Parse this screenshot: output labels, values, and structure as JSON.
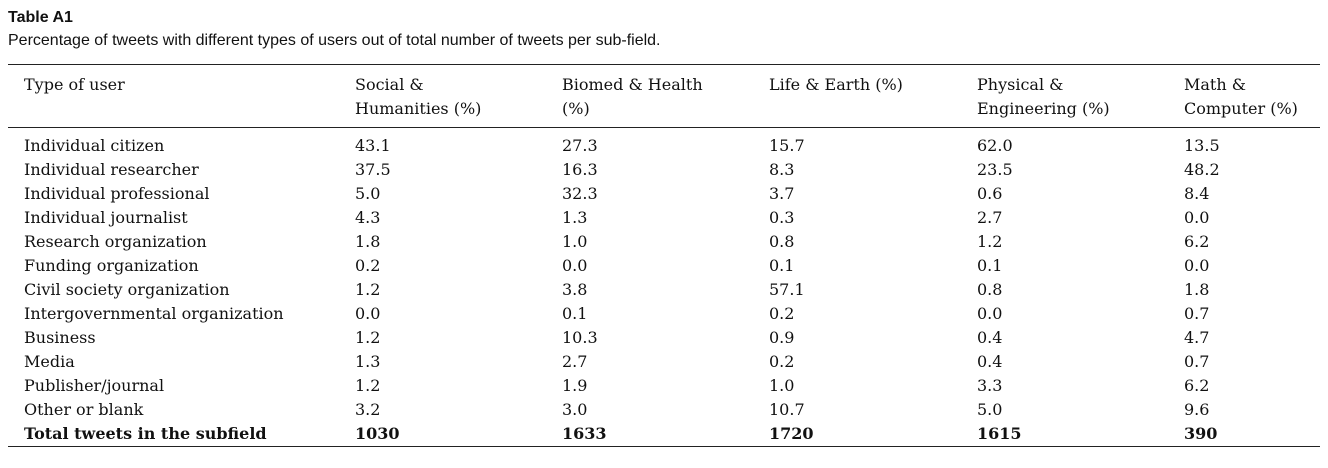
{
  "table": {
    "label": "Table A1",
    "caption": "Percentage of tweets with different types of users out of total number of tweets per sub-field.",
    "headers": [
      [
        "Type of user"
      ],
      [
        "Social &",
        "Humanities (%)"
      ],
      [
        "Biomed & Health",
        "(%)"
      ],
      [
        "Life & Earth (%)"
      ],
      [
        "Physical &",
        "Engineering (%)"
      ],
      [
        "Math &",
        "Computer (%)"
      ]
    ],
    "rows": [
      [
        "Individual citizen",
        "43.1",
        "27.3",
        "15.7",
        "62.0",
        "13.5"
      ],
      [
        "Individual researcher",
        "37.5",
        "16.3",
        "8.3",
        "23.5",
        "48.2"
      ],
      [
        "Individual professional",
        "5.0",
        "32.3",
        "3.7",
        "0.6",
        "8.4"
      ],
      [
        "Individual journalist",
        "4.3",
        "1.3",
        "0.3",
        "2.7",
        "0.0"
      ],
      [
        "Research organization",
        "1.8",
        "1.0",
        "0.8",
        "1.2",
        "6.2"
      ],
      [
        "Funding organization",
        "0.2",
        "0.0",
        "0.1",
        "0.1",
        "0.0"
      ],
      [
        "Civil society organization",
        "1.2",
        "3.8",
        "57.1",
        "0.8",
        "1.8"
      ],
      [
        "Intergovernmental organization",
        "0.0",
        "0.1",
        "0.2",
        "0.0",
        "0.7"
      ],
      [
        "Business",
        "1.2",
        "10.3",
        "0.9",
        "0.4",
        "4.7"
      ],
      [
        "Media",
        "1.3",
        "2.7",
        "0.2",
        "0.4",
        "0.7"
      ],
      [
        "Publisher/journal",
        "1.2",
        "1.9",
        "1.0",
        "3.3",
        "6.2"
      ],
      [
        "Other or blank",
        "3.2",
        "3.0",
        "10.7",
        "5.0",
        "9.6"
      ]
    ],
    "total_row": [
      "Total tweets in the subfield",
      "1030",
      "1633",
      "1720",
      "1615",
      "390"
    ]
  }
}
